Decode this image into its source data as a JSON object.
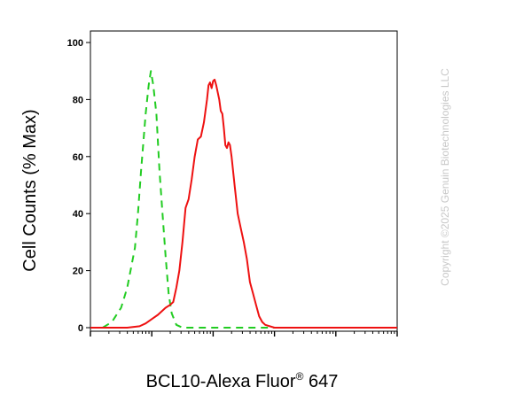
{
  "chart_data": {
    "type": "line",
    "title": "",
    "xlabel_main": "BCL10-Alexa Fluor",
    "xlabel_sup": "®",
    "xlabel_tail": " 647",
    "ylabel": "Cell Counts (% Max)",
    "xscale": "log",
    "ylim": [
      0,
      100
    ],
    "yticks": [
      0,
      20,
      40,
      60,
      80,
      100
    ],
    "ytick_labels": [
      "0",
      "20",
      "40",
      "60",
      "80",
      "100"
    ],
    "grid": false,
    "legend": "none",
    "series": [
      {
        "style": "dashed",
        "color": "#22cc22",
        "points": [
          [
            0.0,
            0
          ],
          [
            0.04,
            0
          ],
          [
            0.07,
            2
          ],
          [
            0.1,
            7
          ],
          [
            0.12,
            14
          ],
          [
            0.145,
            28
          ],
          [
            0.155,
            40
          ],
          [
            0.165,
            55
          ],
          [
            0.18,
            75
          ],
          [
            0.19,
            85
          ],
          [
            0.197,
            90
          ],
          [
            0.205,
            85
          ],
          [
            0.215,
            75
          ],
          [
            0.225,
            55
          ],
          [
            0.235,
            40
          ],
          [
            0.245,
            25
          ],
          [
            0.255,
            12
          ],
          [
            0.265,
            5
          ],
          [
            0.28,
            1
          ],
          [
            0.3,
            0
          ],
          [
            0.55,
            0
          ],
          [
            1.0,
            0
          ]
        ]
      },
      {
        "style": "solid",
        "color": "#ee1111",
        "points": [
          [
            0.0,
            0
          ],
          [
            0.12,
            0
          ],
          [
            0.16,
            0.5
          ],
          [
            0.18,
            1.5
          ],
          [
            0.2,
            3
          ],
          [
            0.22,
            4.5
          ],
          [
            0.245,
            7
          ],
          [
            0.26,
            8
          ],
          [
            0.27,
            9
          ],
          [
            0.28,
            14
          ],
          [
            0.29,
            20
          ],
          [
            0.3,
            30
          ],
          [
            0.31,
            42
          ],
          [
            0.32,
            45
          ],
          [
            0.33,
            52
          ],
          [
            0.34,
            60
          ],
          [
            0.35,
            66
          ],
          [
            0.36,
            67
          ],
          [
            0.37,
            72
          ],
          [
            0.38,
            80
          ],
          [
            0.385,
            85
          ],
          [
            0.39,
            86
          ],
          [
            0.395,
            84
          ],
          [
            0.4,
            86.5
          ],
          [
            0.405,
            87
          ],
          [
            0.41,
            85
          ],
          [
            0.42,
            80
          ],
          [
            0.425,
            76
          ],
          [
            0.43,
            75
          ],
          [
            0.435,
            70
          ],
          [
            0.44,
            64
          ],
          [
            0.445,
            63
          ],
          [
            0.45,
            65
          ],
          [
            0.455,
            64
          ],
          [
            0.46,
            60
          ],
          [
            0.47,
            50
          ],
          [
            0.48,
            40
          ],
          [
            0.49,
            35
          ],
          [
            0.5,
            30
          ],
          [
            0.51,
            24
          ],
          [
            0.52,
            16
          ],
          [
            0.53,
            12
          ],
          [
            0.54,
            8
          ],
          [
            0.55,
            4
          ],
          [
            0.56,
            2
          ],
          [
            0.57,
            1
          ],
          [
            0.6,
            0
          ],
          [
            1.0,
            0
          ]
        ]
      }
    ]
  },
  "watermark": "Copyright ©2025 Genuin Biotechnologies LLC"
}
